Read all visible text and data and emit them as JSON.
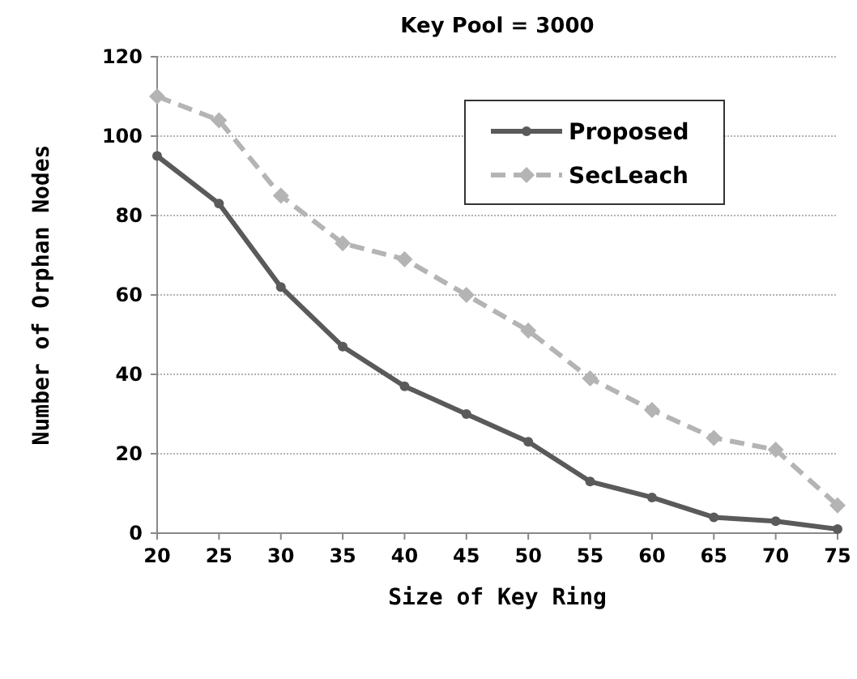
{
  "chart_data": {
    "type": "line",
    "title": "Key Pool = 3000",
    "xlabel": "Size of Key Ring",
    "ylabel": "Number of Orphan Nodes",
    "x": [
      20,
      25,
      30,
      35,
      40,
      45,
      50,
      55,
      60,
      65,
      70,
      75
    ],
    "xlim": [
      20,
      75
    ],
    "xticks": [
      20,
      25,
      30,
      35,
      40,
      45,
      50,
      55,
      60,
      65,
      70,
      75
    ],
    "ylim": [
      0,
      120
    ],
    "yticks": [
      0,
      20,
      40,
      60,
      80,
      100,
      120
    ],
    "grid": "y",
    "legend": "top right",
    "series": [
      {
        "name": "Proposed",
        "color": "#5a5a5a",
        "marker": "circle",
        "line_style": "solid",
        "values": [
          95,
          83,
          62,
          47,
          37,
          30,
          23,
          13,
          9,
          4,
          3,
          1
        ]
      },
      {
        "name": "SecLeach",
        "color": "#b4b4b4",
        "marker": "diamond",
        "line_style": "dashed",
        "values": [
          110,
          104,
          85,
          73,
          69,
          60,
          51,
          39,
          31,
          24,
          21,
          7
        ]
      }
    ]
  }
}
